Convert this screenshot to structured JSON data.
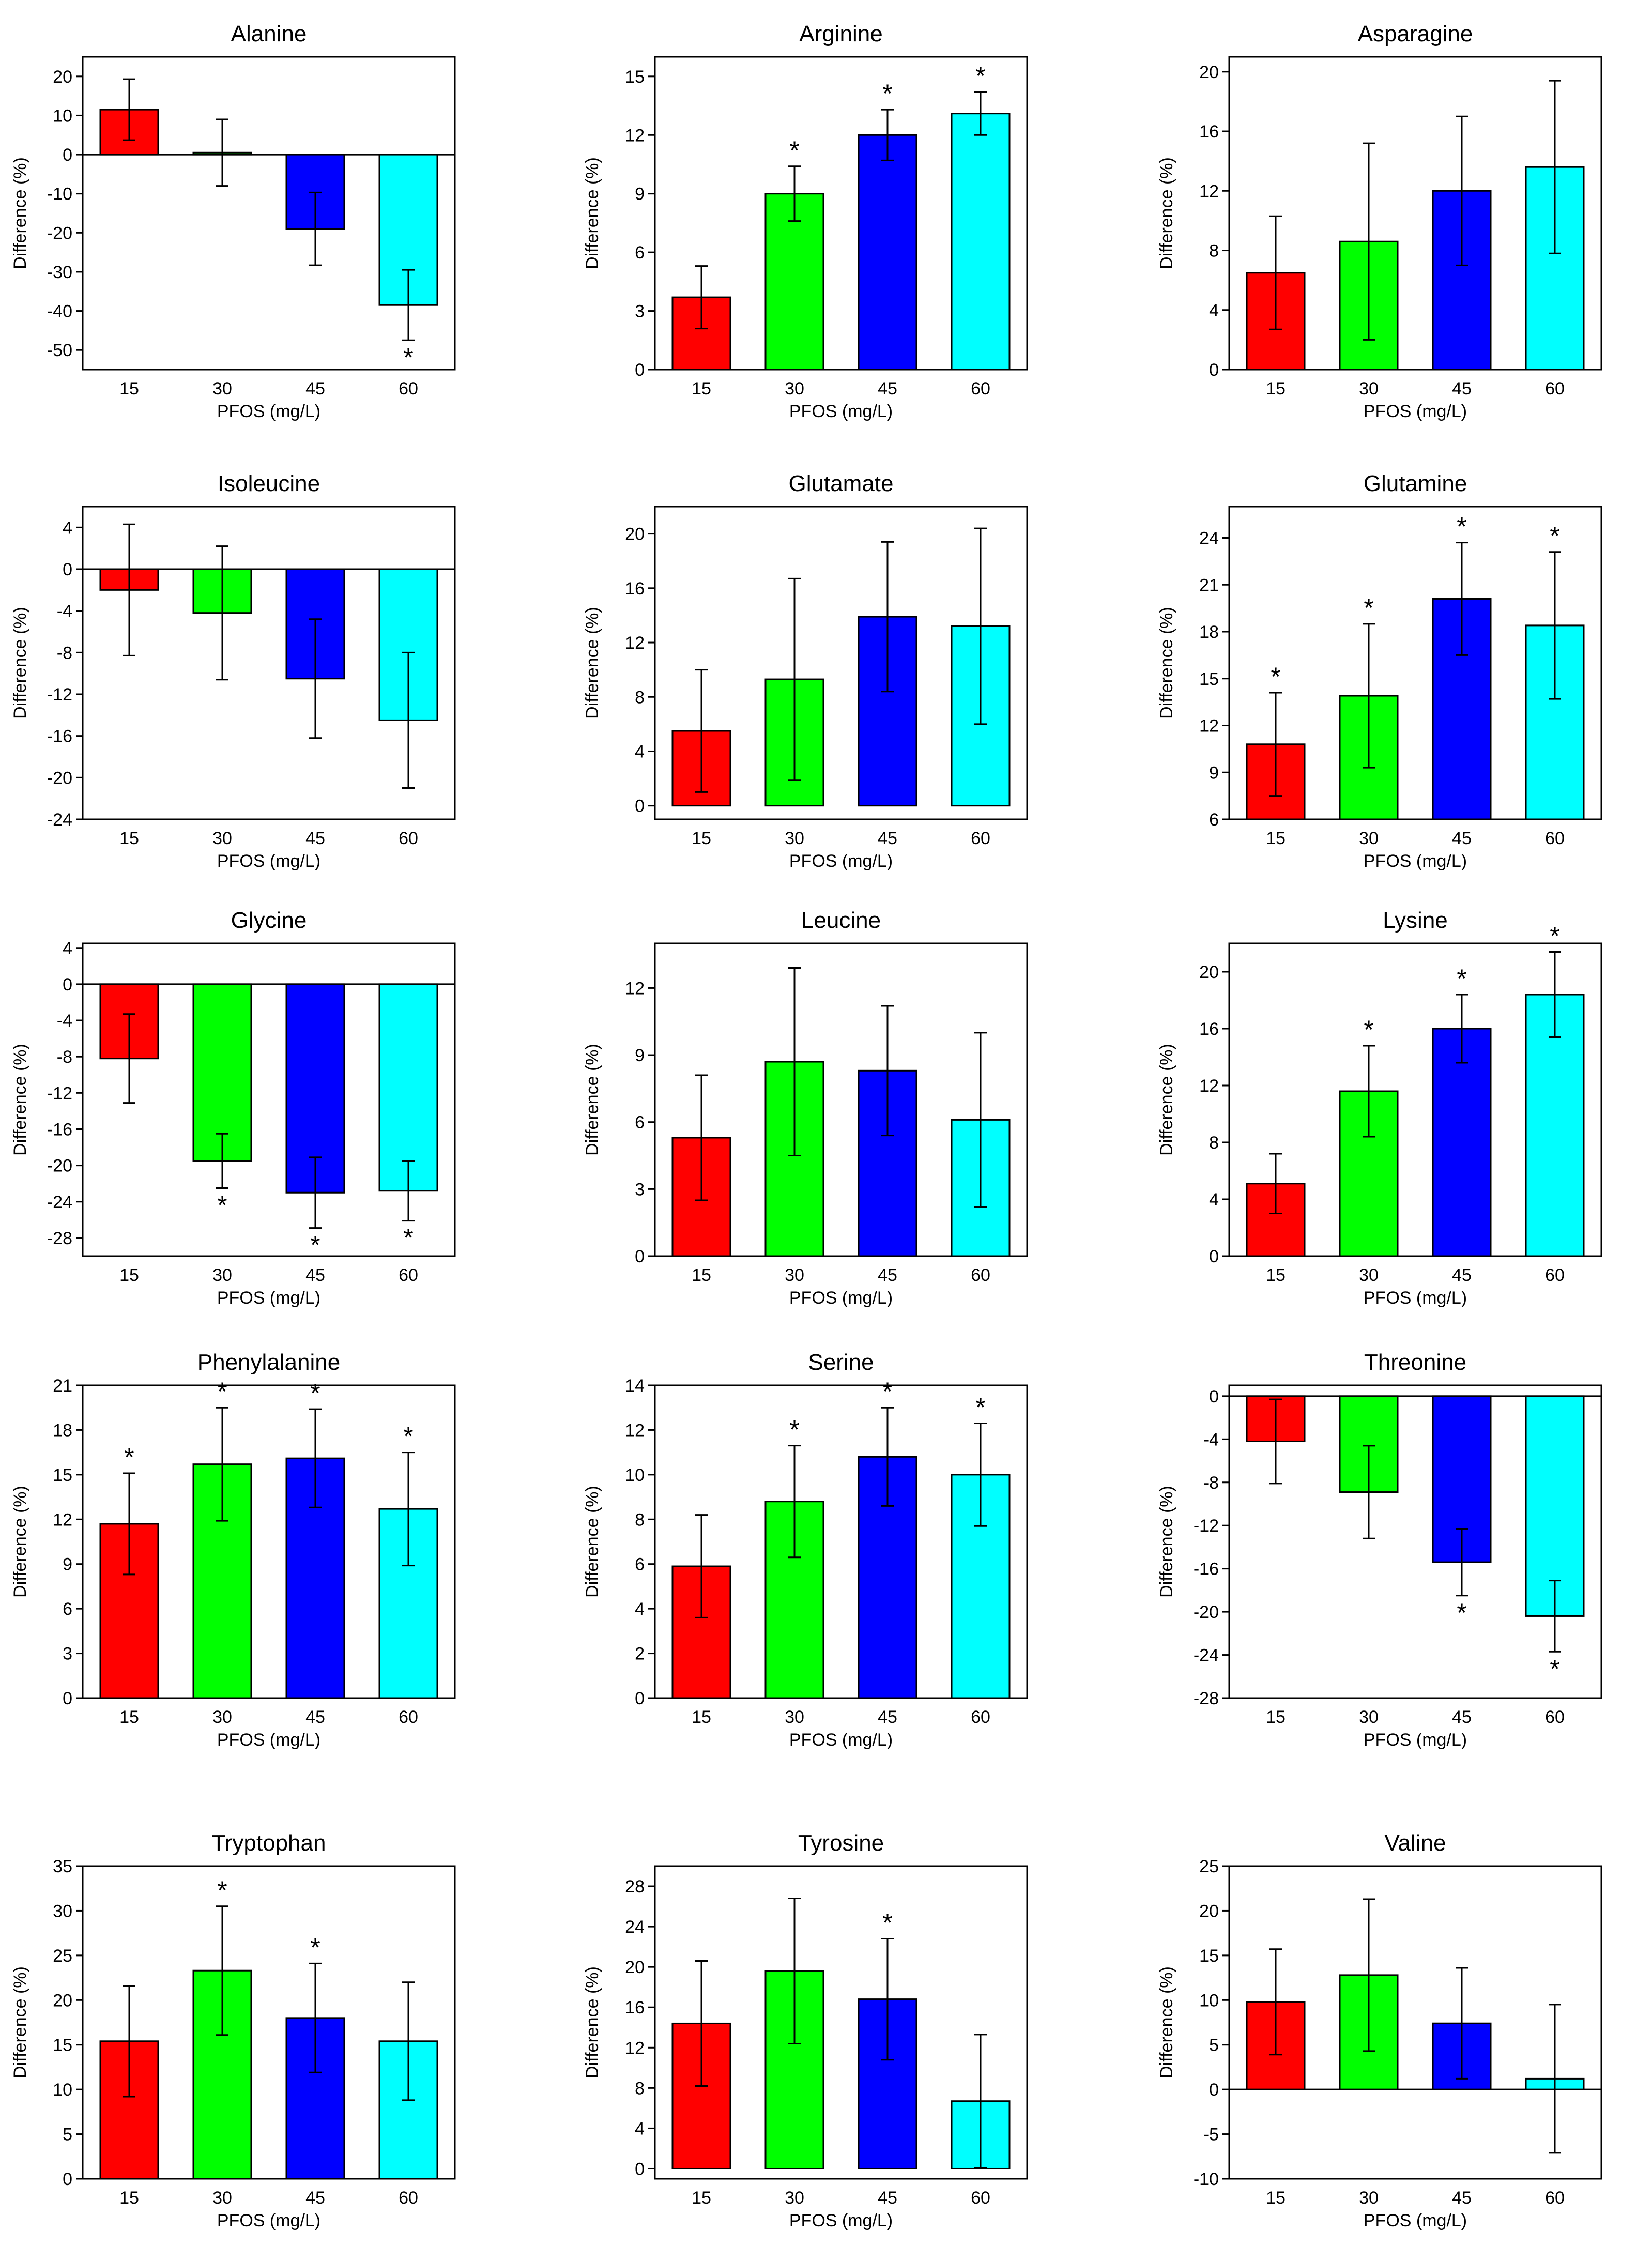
{
  "figure": {
    "x_label": "PFOS (mg/L)",
    "y_label": "Difference (%)",
    "categories": [
      "15",
      "30",
      "45",
      "60"
    ],
    "bar_colors": [
      "#ff0000",
      "#00ff00",
      "#0000ff",
      "#00ffff"
    ],
    "significance_mark": "*"
  },
  "chart_data": [
    {
      "type": "bar",
      "title": "Alanine",
      "xlabel": "PFOS (mg/L)",
      "ylabel": "Difference (%)",
      "categories": [
        "15",
        "30",
        "45",
        "60"
      ],
      "values": [
        11.5,
        0.5,
        -19.0,
        -38.5
      ],
      "errors": [
        7.8,
        8.5,
        9.3,
        9.0
      ],
      "significant": [
        false,
        false,
        false,
        true
      ],
      "ylim": [
        -55,
        25
      ],
      "ticks": [
        20,
        10,
        0,
        -10,
        -20,
        -30,
        -40,
        -50
      ],
      "zero_line": true
    },
    {
      "type": "bar",
      "title": "Arginine",
      "xlabel": "PFOS (mg/L)",
      "ylabel": "Difference (%)",
      "categories": [
        "15",
        "30",
        "45",
        "60"
      ],
      "values": [
        3.7,
        9.0,
        12.0,
        13.1
      ],
      "errors": [
        1.6,
        1.4,
        1.3,
        1.1
      ],
      "significant": [
        false,
        true,
        true,
        true
      ],
      "ylim": [
        0,
        16
      ],
      "ticks": [
        0,
        3,
        6,
        9,
        12,
        15
      ],
      "zero_line": false
    },
    {
      "type": "bar",
      "title": "Asparagine",
      "xlabel": "PFOS (mg/L)",
      "ylabel": "Difference (%)",
      "categories": [
        "15",
        "30",
        "45",
        "60"
      ],
      "values": [
        6.5,
        8.6,
        12.0,
        13.6
      ],
      "errors": [
        3.8,
        6.6,
        5.0,
        5.8
      ],
      "significant": [
        false,
        false,
        false,
        false
      ],
      "ylim": [
        0,
        21
      ],
      "ticks": [
        0,
        4,
        8,
        12,
        16,
        20
      ],
      "zero_line": false
    },
    {
      "type": "bar",
      "title": "Isoleucine",
      "xlabel": "PFOS (mg/L)",
      "ylabel": "Difference (%)",
      "categories": [
        "15",
        "30",
        "45",
        "60"
      ],
      "values": [
        -2.0,
        -4.2,
        -10.5,
        -14.5
      ],
      "errors": [
        6.3,
        6.4,
        5.7,
        6.5
      ],
      "significant": [
        false,
        false,
        false,
        false
      ],
      "ylim": [
        -24,
        6
      ],
      "ticks": [
        4,
        0,
        -4,
        -8,
        -12,
        -16,
        -20,
        -24
      ],
      "zero_line": true
    },
    {
      "type": "bar",
      "title": "Glutamate",
      "xlabel": "PFOS (mg/L)",
      "ylabel": "Difference (%)",
      "categories": [
        "15",
        "30",
        "45",
        "60"
      ],
      "values": [
        5.5,
        9.3,
        13.9,
        13.2
      ],
      "errors": [
        4.5,
        7.4,
        5.5,
        7.2
      ],
      "significant": [
        false,
        false,
        false,
        false
      ],
      "ylim": [
        -1,
        22
      ],
      "ticks": [
        0,
        4,
        8,
        12,
        16,
        20
      ],
      "zero_line": false
    },
    {
      "type": "bar",
      "title": "Glutamine",
      "xlabel": "PFOS (mg/L)",
      "ylabel": "Difference (%)",
      "categories": [
        "15",
        "30",
        "45",
        "60"
      ],
      "values": [
        10.8,
        13.9,
        20.1,
        18.4
      ],
      "errors": [
        3.3,
        4.6,
        3.6,
        4.7
      ],
      "significant": [
        true,
        true,
        true,
        true
      ],
      "ylim": [
        6,
        26
      ],
      "ticks": [
        6,
        9,
        12,
        15,
        18,
        21,
        24
      ],
      "zero_line": false
    },
    {
      "type": "bar",
      "title": "Glycine",
      "xlabel": "PFOS (mg/L)",
      "ylabel": "Difference (%)",
      "categories": [
        "15",
        "30",
        "45",
        "60"
      ],
      "values": [
        -8.2,
        -19.5,
        -23.0,
        -22.8
      ],
      "errors": [
        4.9,
        3.0,
        3.9,
        3.3
      ],
      "significant": [
        false,
        true,
        true,
        true
      ],
      "ylim": [
        -30,
        4.5
      ],
      "ticks": [
        4,
        0,
        -4,
        -8,
        -12,
        -16,
        -20,
        -24,
        -28
      ],
      "zero_line": true
    },
    {
      "type": "bar",
      "title": "Leucine",
      "xlabel": "PFOS (mg/L)",
      "ylabel": "Difference (%)",
      "categories": [
        "15",
        "30",
        "45",
        "60"
      ],
      "values": [
        5.3,
        8.7,
        8.3,
        6.1
      ],
      "errors": [
        2.8,
        4.2,
        2.9,
        3.9
      ],
      "significant": [
        false,
        false,
        false,
        false
      ],
      "ylim": [
        0,
        14
      ],
      "ticks": [
        0,
        3,
        6,
        9,
        12
      ],
      "zero_line": false
    },
    {
      "type": "bar",
      "title": "Lysine",
      "xlabel": "PFOS (mg/L)",
      "ylabel": "Difference (%)",
      "categories": [
        "15",
        "30",
        "45",
        "60"
      ],
      "values": [
        5.1,
        11.6,
        16.0,
        18.4
      ],
      "errors": [
        2.1,
        3.2,
        2.4,
        3.0
      ],
      "significant": [
        false,
        true,
        true,
        true
      ],
      "ylim": [
        0,
        22
      ],
      "ticks": [
        0,
        4,
        8,
        12,
        16,
        20
      ],
      "zero_line": false
    },
    {
      "type": "bar",
      "title": "Phenylalanine",
      "xlabel": "PFOS (mg/L)",
      "ylabel": "Difference (%)",
      "categories": [
        "15",
        "30",
        "45",
        "60"
      ],
      "values": [
        11.7,
        15.7,
        16.1,
        12.7
      ],
      "errors": [
        3.4,
        3.8,
        3.3,
        3.8
      ],
      "significant": [
        true,
        true,
        true,
        true
      ],
      "ylim": [
        0,
        21
      ],
      "ticks": [
        0,
        3,
        6,
        9,
        12,
        15,
        18,
        21
      ],
      "zero_line": false
    },
    {
      "type": "bar",
      "title": "Serine",
      "xlabel": "PFOS (mg/L)",
      "ylabel": "Difference (%)",
      "categories": [
        "15",
        "30",
        "45",
        "60"
      ],
      "values": [
        5.9,
        8.8,
        10.8,
        10.0
      ],
      "errors": [
        2.3,
        2.5,
        2.2,
        2.3
      ],
      "significant": [
        false,
        true,
        true,
        true
      ],
      "ylim": [
        0,
        14
      ],
      "ticks": [
        0,
        2,
        4,
        6,
        8,
        10,
        12,
        14
      ],
      "zero_line": false
    },
    {
      "type": "bar",
      "title": "Threonine",
      "xlabel": "PFOS (mg/L)",
      "ylabel": "Difference (%)",
      "categories": [
        "15",
        "30",
        "45",
        "60"
      ],
      "values": [
        -4.2,
        -8.9,
        -15.4,
        -20.4
      ],
      "errors": [
        3.9,
        4.3,
        3.1,
        3.3
      ],
      "significant": [
        false,
        false,
        true,
        true
      ],
      "ylim": [
        -28,
        1
      ],
      "ticks": [
        0,
        -4,
        -8,
        -12,
        -16,
        -20,
        -24,
        -28
      ],
      "zero_line": true
    },
    {
      "type": "bar",
      "title": "Tryptophan",
      "xlabel": "PFOS (mg/L)",
      "ylabel": "Difference (%)",
      "categories": [
        "15",
        "30",
        "45",
        "60"
      ],
      "values": [
        15.4,
        23.3,
        18.0,
        15.4
      ],
      "errors": [
        6.2,
        7.2,
        6.1,
        6.6
      ],
      "significant": [
        false,
        true,
        true,
        false
      ],
      "ylim": [
        0,
        35
      ],
      "ticks": [
        0,
        5,
        10,
        15,
        20,
        25,
        30,
        35
      ],
      "zero_line": false
    },
    {
      "type": "bar",
      "title": "Tyrosine",
      "xlabel": "PFOS (mg/L)",
      "ylabel": "Difference (%)",
      "categories": [
        "15",
        "30",
        "45",
        "60"
      ],
      "values": [
        14.4,
        19.6,
        16.8,
        6.7
      ],
      "errors": [
        6.2,
        7.2,
        6.0,
        6.6
      ],
      "significant": [
        false,
        false,
        true,
        false
      ],
      "ylim": [
        -1,
        30
      ],
      "ticks": [
        0,
        4,
        8,
        12,
        16,
        20,
        24,
        28
      ],
      "zero_line": false
    },
    {
      "type": "bar",
      "title": "Valine",
      "xlabel": "PFOS (mg/L)",
      "ylabel": "Difference (%)",
      "categories": [
        "15",
        "30",
        "45",
        "60"
      ],
      "values": [
        9.8,
        12.8,
        7.4,
        1.2
      ],
      "errors": [
        5.9,
        8.5,
        6.2,
        8.3
      ],
      "significant": [
        false,
        false,
        false,
        false
      ],
      "ylim": [
        -10,
        25
      ],
      "ticks": [
        25,
        20,
        15,
        10,
        5,
        0,
        -5,
        -10
      ],
      "zero_line": true
    }
  ]
}
